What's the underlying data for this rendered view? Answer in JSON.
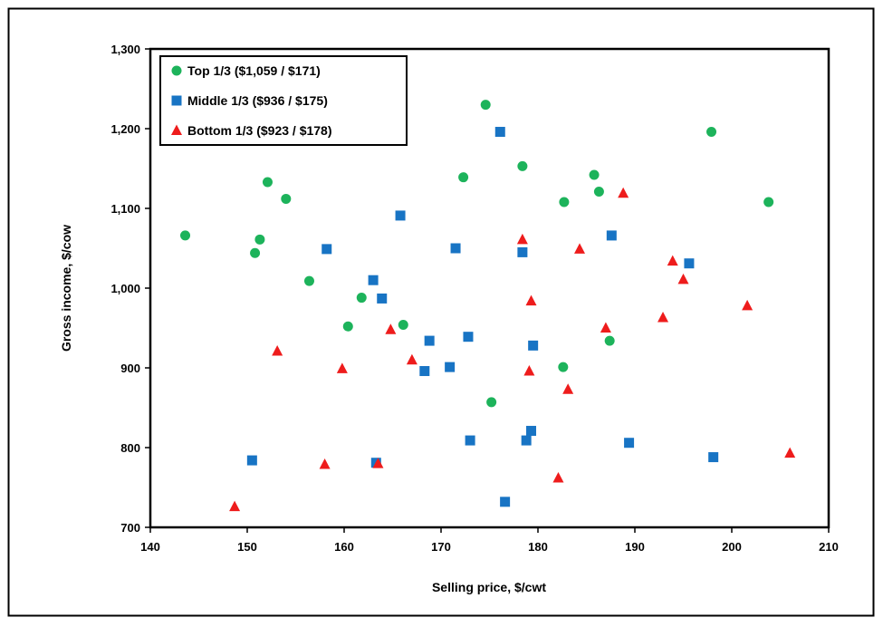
{
  "chart_data": {
    "type": "scatter",
    "title": "",
    "xlabel": "Selling price, $/cwt",
    "ylabel": "Gross income, $/cow",
    "xlim": [
      140,
      210
    ],
    "ylim": [
      700,
      1300
    ],
    "xticks": [
      140,
      150,
      160,
      170,
      180,
      190,
      200,
      210
    ],
    "yticks": [
      700,
      800,
      900,
      1000,
      1100,
      1200,
      1300
    ],
    "xtick_labels": [
      "140",
      "150",
      "160",
      "170",
      "180",
      "190",
      "200",
      "210"
    ],
    "ytick_labels": [
      "700",
      "800",
      "900",
      "1,000",
      "1,100",
      "1,200",
      "1,300"
    ],
    "grid": false,
    "legend_position": "top-left",
    "series": [
      {
        "name": "Top 1/3 ($1,059 / $171)",
        "marker": "circle",
        "color": "#1db35b",
        "points": [
          [
            143.6,
            1066
          ],
          [
            150.8,
            1044
          ],
          [
            151.3,
            1061
          ],
          [
            152.1,
            1133
          ],
          [
            154.0,
            1112
          ],
          [
            156.4,
            1009
          ],
          [
            160.4,
            952
          ],
          [
            161.8,
            988
          ],
          [
            166.1,
            954
          ],
          [
            172.3,
            1139
          ],
          [
            174.6,
            1230
          ],
          [
            175.2,
            857
          ],
          [
            178.4,
            1153
          ],
          [
            182.6,
            901
          ],
          [
            182.7,
            1108
          ],
          [
            185.8,
            1142
          ],
          [
            186.3,
            1121
          ],
          [
            187.4,
            934
          ],
          [
            197.9,
            1196
          ],
          [
            203.8,
            1108
          ]
        ]
      },
      {
        "name": "Middle 1/3 ($936 / $175)",
        "marker": "square",
        "color": "#1874c4",
        "points": [
          [
            150.5,
            784
          ],
          [
            158.2,
            1049
          ],
          [
            163.0,
            1010
          ],
          [
            163.3,
            781
          ],
          [
            163.9,
            987
          ],
          [
            165.8,
            1091
          ],
          [
            168.3,
            896
          ],
          [
            168.8,
            934
          ],
          [
            170.9,
            901
          ],
          [
            171.5,
            1050
          ],
          [
            172.8,
            939
          ],
          [
            173.0,
            809
          ],
          [
            176.1,
            1196
          ],
          [
            176.6,
            732
          ],
          [
            178.4,
            1045
          ],
          [
            178.8,
            809
          ],
          [
            179.3,
            821
          ],
          [
            179.5,
            928
          ],
          [
            187.6,
            1066
          ],
          [
            189.4,
            806
          ],
          [
            195.6,
            1031
          ],
          [
            198.1,
            788
          ]
        ]
      },
      {
        "name": "Bottom 1/3 ($923 / $178)",
        "marker": "triangle",
        "color": "#ee1c1c",
        "points": [
          [
            148.7,
            726
          ],
          [
            153.1,
            921
          ],
          [
            158.0,
            779
          ],
          [
            159.8,
            899
          ],
          [
            163.5,
            780
          ],
          [
            164.8,
            948
          ],
          [
            167.0,
            910
          ],
          [
            178.4,
            1061
          ],
          [
            179.1,
            896
          ],
          [
            179.3,
            984
          ],
          [
            182.1,
            762
          ],
          [
            183.1,
            873
          ],
          [
            184.3,
            1049
          ],
          [
            187.0,
            950
          ],
          [
            188.8,
            1119
          ],
          [
            192.9,
            963
          ],
          [
            193.9,
            1034
          ],
          [
            195.0,
            1011
          ],
          [
            201.6,
            978
          ],
          [
            206.0,
            793
          ]
        ]
      }
    ]
  }
}
